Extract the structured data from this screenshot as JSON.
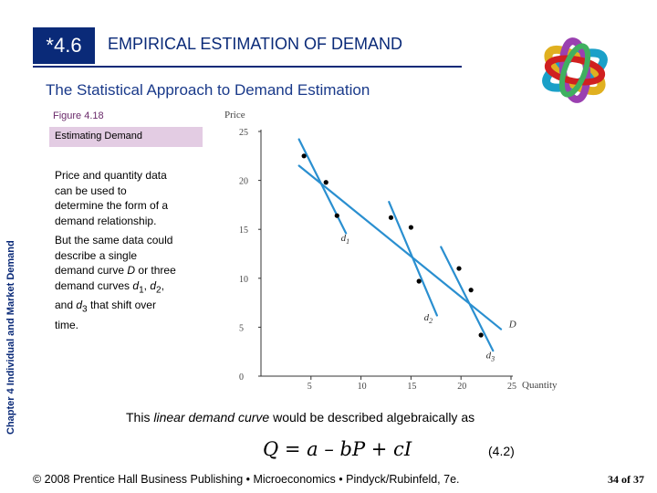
{
  "header": {
    "section_number": "*4.6",
    "section_title": "EMPIRICAL ESTIMATION OF DEMAND",
    "subtitle": "The Statistical Approach to Demand Estimation"
  },
  "side_label": "Chapter 4  Individual and Market Demand",
  "figure": {
    "label": "Figure 4.18",
    "caption": "Estimating Demand"
  },
  "body": {
    "para1": [
      "Price and quantity data",
      "can be used to",
      "determine the form of a",
      "demand relationship."
    ],
    "para2_lines": {
      "l1": "But the same data could",
      "l2": "describe a single",
      "l3_pre": "demand curve ",
      "l3_D": "D",
      "l3_post": " or three",
      "l4_pre": "demand curves ",
      "l4_d": "d",
      "l4_sub1": "1",
      "l4_mid": ", ",
      "l4_d2": "d",
      "l4_sub2": "2",
      "l4_post": ",",
      "l5_pre": "and ",
      "l5_d": "d",
      "l5_sub": "3",
      "l5_post": " that shift over",
      "l6": "time."
    }
  },
  "chart_data": {
    "type": "scatter",
    "ylabel": "Price",
    "xlabel": "Quantity",
    "xlim": [
      0,
      25
    ],
    "ylim": [
      0,
      25
    ],
    "x_ticks": [
      "5",
      "10",
      "15",
      "20",
      "25"
    ],
    "y_ticks": [
      "0",
      "5",
      "10",
      "15",
      "20",
      "25"
    ],
    "points": [
      {
        "x": 4.3,
        "y": 22.5
      },
      {
        "x": 6.5,
        "y": 19.8
      },
      {
        "x": 7.6,
        "y": 16.4
      },
      {
        "x": 13.0,
        "y": 16.2
      },
      {
        "x": 15.0,
        "y": 15.2
      },
      {
        "x": 15.8,
        "y": 9.7
      },
      {
        "x": 19.8,
        "y": 11.0
      },
      {
        "x": 21.0,
        "y": 8.8
      },
      {
        "x": 22.0,
        "y": 4.2
      }
    ],
    "lines": [
      {
        "name": "D",
        "x": [
          3.8,
          24.0
        ],
        "y": [
          21.5,
          4.8
        ]
      },
      {
        "name": "d1",
        "x": [
          3.8,
          8.5
        ],
        "y": [
          24.2,
          14.6
        ]
      },
      {
        "name": "d2",
        "x": [
          12.8,
          17.6
        ],
        "y": [
          17.8,
          6.2
        ]
      },
      {
        "name": "d3",
        "x": [
          18.0,
          23.2
        ],
        "y": [
          13.2,
          2.6
        ]
      }
    ],
    "line_labels": [
      {
        "name": "d",
        "sub": "1",
        "x": 8.0,
        "y": 13.8
      },
      {
        "name": "d",
        "sub": "2",
        "x": 16.3,
        "y": 5.7
      },
      {
        "name": "d",
        "sub": "3",
        "x": 22.5,
        "y": 1.8
      },
      {
        "name": "D",
        "sub": "",
        "x": 24.8,
        "y": 5.0
      }
    ],
    "grid": false,
    "colors": {
      "lines": "#2a8fd0",
      "points": "#000000"
    }
  },
  "equation_sentence": {
    "pre": "This ",
    "em": "linear demand curve",
    "post": " would be described algebraically as"
  },
  "equation": "Q = a – bP + cI",
  "equation_number": "(4.2)",
  "footer": "© 2008 Prentice Hall Business Publishing  •  Microeconomics  •  Pindyck/Rubinfeld, 7e.",
  "page_number": {
    "pre": "34",
    "mid": " of ",
    "post": "37"
  }
}
